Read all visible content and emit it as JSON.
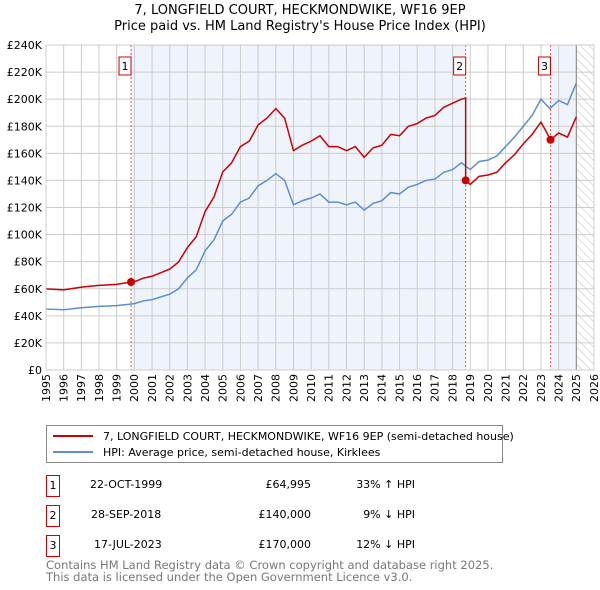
{
  "title": "7, LONGFIELD COURT, HECKMONDWIKE, WF16 9EP",
  "subtitle": "Price paid vs. HM Land Registry's House Price Index (HPI)",
  "chart_data": {
    "type": "line",
    "ylim": [
      0,
      240000
    ],
    "xlim": [
      1995,
      2026
    ],
    "yticks": [
      {
        "v": 0,
        "label": "£0"
      },
      {
        "v": 20000,
        "label": "£20K"
      },
      {
        "v": 40000,
        "label": "£40K"
      },
      {
        "v": 60000,
        "label": "£60K"
      },
      {
        "v": 80000,
        "label": "£80K"
      },
      {
        "v": 100000,
        "label": "£100K"
      },
      {
        "v": 120000,
        "label": "£120K"
      },
      {
        "v": 140000,
        "label": "£140K"
      },
      {
        "v": 160000,
        "label": "£160K"
      },
      {
        "v": 180000,
        "label": "£180K"
      },
      {
        "v": 200000,
        "label": "£200K"
      },
      {
        "v": 220000,
        "label": "£220K"
      },
      {
        "v": 240000,
        "label": "£240K"
      }
    ],
    "xticks": [
      "1995",
      "1996",
      "1997",
      "1998",
      "1999",
      "2000",
      "2001",
      "2002",
      "2003",
      "2004",
      "2005",
      "2006",
      "2007",
      "2008",
      "2009",
      "2010",
      "2011",
      "2012",
      "2013",
      "2014",
      "2015",
      "2016",
      "2017",
      "2018",
      "2019",
      "2020",
      "2021",
      "2022",
      "2023",
      "2024",
      "2025",
      "2026"
    ],
    "grid": true,
    "series": [
      {
        "name": "7, LONGFIELD COURT, HECKMONDWIKE, WF16 9EP (semi-detached house)",
        "color": "#cc0000",
        "points": [
          [
            1995,
            59900
          ],
          [
            1996,
            59200
          ],
          [
            1997,
            61200
          ],
          [
            1998,
            62500
          ],
          [
            1999,
            63200
          ],
          [
            1999.8,
            65000
          ],
          [
            2000,
            65200
          ],
          [
            2000.5,
            67800
          ],
          [
            2001,
            69200
          ],
          [
            2002,
            74500
          ],
          [
            2002.5,
            79800
          ],
          [
            2003,
            90400
          ],
          [
            2003.5,
            98400
          ],
          [
            2004,
            117000
          ],
          [
            2004.5,
            127700
          ],
          [
            2005,
            146300
          ],
          [
            2005.5,
            153000
          ],
          [
            2006,
            165000
          ],
          [
            2006.5,
            169000
          ],
          [
            2007,
            181000
          ],
          [
            2007.5,
            186000
          ],
          [
            2008,
            193000
          ],
          [
            2008.5,
            186000
          ],
          [
            2009,
            162000
          ],
          [
            2009.5,
            166000
          ],
          [
            2010,
            169000
          ],
          [
            2010.5,
            173000
          ],
          [
            2011,
            165000
          ],
          [
            2011.5,
            165000
          ],
          [
            2012,
            162000
          ],
          [
            2012.5,
            165000
          ],
          [
            2013,
            157000
          ],
          [
            2013.5,
            164000
          ],
          [
            2014,
            166000
          ],
          [
            2014.5,
            174000
          ],
          [
            2015,
            173000
          ],
          [
            2015.5,
            180000
          ],
          [
            2016,
            182000
          ],
          [
            2016.5,
            186000
          ],
          [
            2017,
            188000
          ],
          [
            2017.5,
            194000
          ],
          [
            2018,
            197000
          ],
          [
            2018.5,
            200000
          ],
          [
            2018.74,
            200800
          ],
          [
            2018.74,
            140000
          ],
          [
            2019,
            137000
          ],
          [
            2019.5,
            143000
          ],
          [
            2020,
            144000
          ],
          [
            2020.5,
            146000
          ],
          [
            2021,
            153000
          ],
          [
            2021.5,
            159000
          ],
          [
            2022,
            167000
          ],
          [
            2022.5,
            174000
          ],
          [
            2023,
            183000
          ],
          [
            2023.3,
            176000
          ],
          [
            2023.54,
            170000
          ],
          [
            2024,
            175000
          ],
          [
            2024.5,
            172000
          ],
          [
            2025,
            187000
          ]
        ]
      },
      {
        "name": "HPI: Average price, semi-detached house, Kirklees",
        "color": "#5b8fd0",
        "points": [
          [
            1995,
            45000
          ],
          [
            1996,
            44500
          ],
          [
            1997,
            46000
          ],
          [
            1998,
            47000
          ],
          [
            1999,
            47500
          ],
          [
            2000,
            49000
          ],
          [
            2000.5,
            51000
          ],
          [
            2001,
            52000
          ],
          [
            2002,
            56000
          ],
          [
            2002.5,
            60000
          ],
          [
            2003,
            68000
          ],
          [
            2003.5,
            74000
          ],
          [
            2004,
            88000
          ],
          [
            2004.5,
            96000
          ],
          [
            2005,
            110000
          ],
          [
            2005.5,
            115000
          ],
          [
            2006,
            124000
          ],
          [
            2006.5,
            127000
          ],
          [
            2007,
            136000
          ],
          [
            2007.5,
            140000
          ],
          [
            2008,
            145000
          ],
          [
            2008.5,
            140000
          ],
          [
            2009,
            122000
          ],
          [
            2009.5,
            125000
          ],
          [
            2010,
            127000
          ],
          [
            2010.5,
            130000
          ],
          [
            2011,
            124000
          ],
          [
            2011.5,
            124000
          ],
          [
            2012,
            122000
          ],
          [
            2012.5,
            124000
          ],
          [
            2013,
            118000
          ],
          [
            2013.5,
            123000
          ],
          [
            2014,
            125000
          ],
          [
            2014.5,
            131000
          ],
          [
            2015,
            130000
          ],
          [
            2015.5,
            135000
          ],
          [
            2016,
            137000
          ],
          [
            2016.5,
            140000
          ],
          [
            2017,
            141000
          ],
          [
            2017.5,
            146000
          ],
          [
            2018,
            148000
          ],
          [
            2018.5,
            153000
          ],
          [
            2019,
            148000
          ],
          [
            2019.5,
            154000
          ],
          [
            2020,
            155000
          ],
          [
            2020.5,
            158000
          ],
          [
            2021,
            165000
          ],
          [
            2021.5,
            172000
          ],
          [
            2022,
            180000
          ],
          [
            2022.5,
            188000
          ],
          [
            2023,
            200000
          ],
          [
            2023.5,
            193000
          ],
          [
            2024,
            199000
          ],
          [
            2024.5,
            196000
          ],
          [
            2025,
            212000
          ]
        ]
      }
    ],
    "sales": [
      {
        "id": "1",
        "x": 1999.81,
        "y": 64995
      },
      {
        "id": "2",
        "x": 2018.74,
        "y": 140000
      },
      {
        "id": "3",
        "x": 2023.54,
        "y": 170000
      }
    ],
    "shaded": [
      [
        1999.81,
        2018.74
      ],
      [
        2023.54,
        2025.0
      ]
    ],
    "hatched": [
      2025.0,
      2026
    ]
  },
  "legend": {
    "red": "7, LONGFIELD COURT, HECKMONDWIKE, WF16 9EP (semi-detached house)",
    "blue": "HPI: Average price, semi-detached house, Kirklees"
  },
  "transactions": [
    {
      "id": "1",
      "date": "22-OCT-1999",
      "price": "£64,995",
      "hpi": "33% ↑ HPI"
    },
    {
      "id": "2",
      "date": "28-SEP-2018",
      "price": "£140,000",
      "hpi": "9% ↓ HPI"
    },
    {
      "id": "3",
      "date": "17-JUL-2023",
      "price": "£170,000",
      "hpi": "12% ↓ HPI"
    }
  ],
  "footer": {
    "line1": "Contains HM Land Registry data © Crown copyright and database right 2025.",
    "line2": "This data is licensed under the Open Government Licence v3.0."
  }
}
